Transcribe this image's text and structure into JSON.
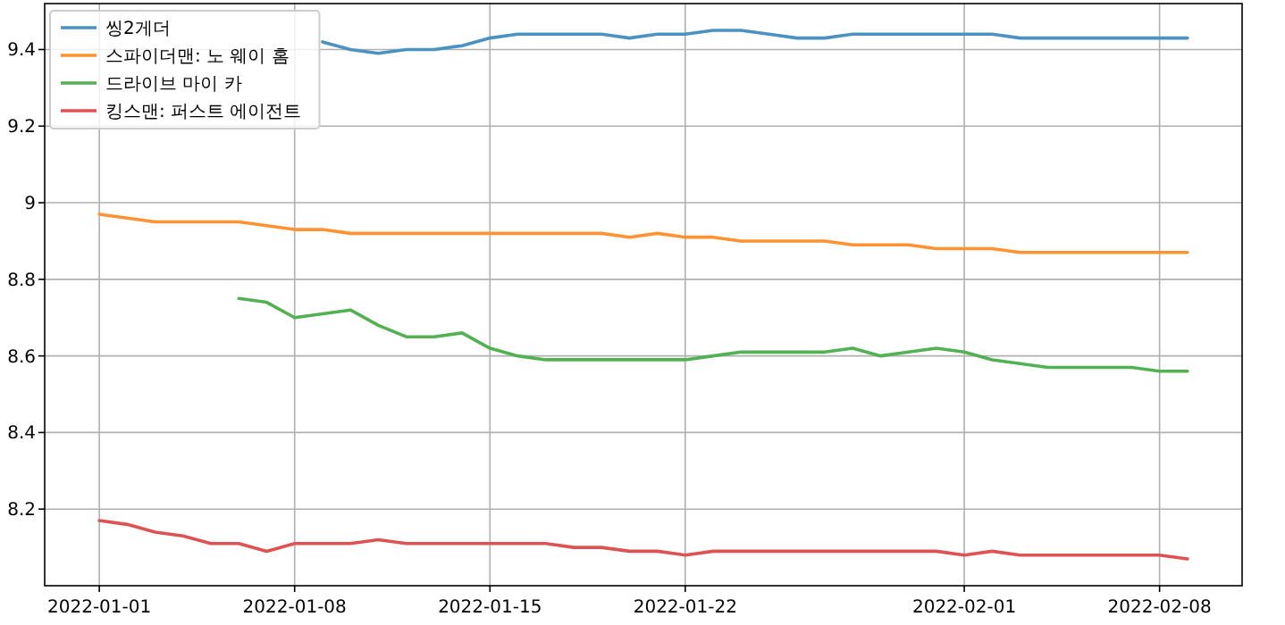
{
  "chart_data": {
    "type": "line",
    "x": [
      "2022-01-01",
      "2022-01-02",
      "2022-01-03",
      "2022-01-04",
      "2022-01-05",
      "2022-01-06",
      "2022-01-07",
      "2022-01-08",
      "2022-01-09",
      "2022-01-10",
      "2022-01-11",
      "2022-01-12",
      "2022-01-13",
      "2022-01-14",
      "2022-01-15",
      "2022-01-16",
      "2022-01-17",
      "2022-01-18",
      "2022-01-19",
      "2022-01-20",
      "2022-01-21",
      "2022-01-22",
      "2022-01-23",
      "2022-01-24",
      "2022-01-25",
      "2022-01-26",
      "2022-01-27",
      "2022-01-28",
      "2022-01-29",
      "2022-01-30",
      "2022-01-31",
      "2022-02-01",
      "2022-02-02",
      "2022-02-03",
      "2022-02-04",
      "2022-02-05",
      "2022-02-06",
      "2022-02-07",
      "2022-02-08",
      "2022-02-09"
    ],
    "series": [
      {
        "name": "씽2게더",
        "color": "#4b92c3",
        "values": [
          null,
          null,
          null,
          null,
          null,
          null,
          null,
          null,
          9.42,
          9.4,
          9.39,
          9.4,
          9.4,
          9.41,
          9.43,
          9.44,
          9.44,
          9.44,
          9.44,
          9.43,
          9.44,
          9.44,
          9.45,
          9.45,
          9.44,
          9.43,
          9.43,
          9.44,
          9.44,
          9.44,
          9.44,
          9.44,
          9.44,
          9.43,
          9.43,
          9.43,
          9.43,
          9.43,
          9.43,
          9.43
        ]
      },
      {
        "name": "스파이더맨: 노 웨이 홈",
        "color": "#ff9232",
        "values": [
          8.97,
          8.96,
          8.95,
          8.95,
          8.95,
          8.95,
          8.94,
          8.93,
          8.93,
          8.92,
          8.92,
          8.92,
          8.92,
          8.92,
          8.92,
          8.92,
          8.92,
          8.92,
          8.92,
          8.91,
          8.92,
          8.91,
          8.91,
          8.9,
          8.9,
          8.9,
          8.9,
          8.89,
          8.89,
          8.89,
          8.88,
          8.88,
          8.88,
          8.87,
          8.87,
          8.87,
          8.87,
          8.87,
          8.87,
          8.87
        ]
      },
      {
        "name": "드라이브 마이 카",
        "color": "#52b152",
        "values": [
          null,
          null,
          null,
          null,
          null,
          8.75,
          8.74,
          8.7,
          8.71,
          8.72,
          8.68,
          8.65,
          8.65,
          8.66,
          8.62,
          8.6,
          8.59,
          8.59,
          8.59,
          8.59,
          8.59,
          8.59,
          8.6,
          8.61,
          8.61,
          8.61,
          8.61,
          8.62,
          8.6,
          8.61,
          8.62,
          8.61,
          8.59,
          8.58,
          8.57,
          8.57,
          8.57,
          8.57,
          8.56,
          8.56
        ]
      },
      {
        "name": "킹스맨: 퍼스트 에이전트",
        "color": "#de5253",
        "values": [
          8.17,
          8.16,
          8.14,
          8.13,
          8.11,
          8.11,
          8.09,
          8.11,
          8.11,
          8.11,
          8.12,
          8.11,
          8.11,
          8.11,
          8.11,
          8.11,
          8.11,
          8.1,
          8.1,
          8.09,
          8.09,
          8.08,
          8.09,
          8.09,
          8.09,
          8.09,
          8.09,
          8.09,
          8.09,
          8.09,
          8.09,
          8.08,
          8.09,
          8.08,
          8.08,
          8.08,
          8.08,
          8.08,
          8.08,
          8.07
        ]
      }
    ],
    "xlim": [
      "2021-12-30T01:00",
      "2022-02-10T23:00"
    ],
    "xticks": [
      "2022-01-01",
      "2022-01-08",
      "2022-01-15",
      "2022-01-22",
      "2022-02-01",
      "2022-02-08"
    ],
    "ylim": [
      8.0,
      9.52
    ],
    "yticks": [
      8.2,
      8.4,
      8.6,
      8.8,
      9.0,
      9.2,
      9.4
    ],
    "grid": true,
    "legend": "top left",
    "marker": "none",
    "line_style": "solid"
  }
}
